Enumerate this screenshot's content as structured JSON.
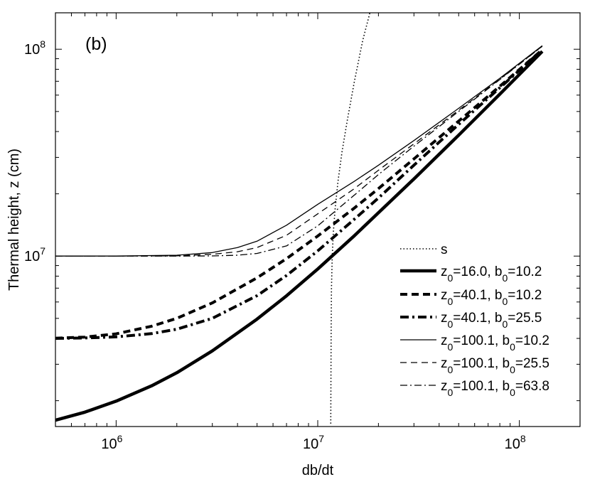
{
  "chart_data": {
    "type": "line",
    "panel_label": "(b)",
    "xlabel": "db/dt",
    "ylabel": "Thermal height, z (cm)",
    "xscale": "log",
    "yscale": "log",
    "xlim": [
      500000,
      200000000
    ],
    "ylim": [
      1500000,
      150000000
    ],
    "x_ticks": [
      {
        "value": 1000000,
        "base": "10",
        "exp": "6"
      },
      {
        "value": 10000000,
        "base": "10",
        "exp": "7"
      },
      {
        "value": 100000000,
        "base": "10",
        "exp": "8"
      }
    ],
    "y_ticks": [
      {
        "value": 10000000,
        "base": "10",
        "exp": "7"
      },
      {
        "value": 100000000,
        "base": "10",
        "exp": "8"
      }
    ],
    "legend_position": "lower-right",
    "series": [
      {
        "name": "s",
        "label": {
          "text": "s"
        },
        "style": "dotted",
        "width": 1.6,
        "x": [
          11600000,
          11650000,
          11700000,
          11800000,
          11950000,
          12200000,
          12600000,
          13200000,
          14000000,
          15200000,
          16700000,
          18300000
        ],
        "y": [
          1550000,
          4000000,
          7000000,
          10000000,
          13000000,
          17000000,
          23000000,
          32000000,
          45000000,
          70000000,
          110000000,
          155000000
        ]
      },
      {
        "name": "z0=16.0, b0=10.2",
        "label": {
          "p1": "z",
          "s1": "0",
          "p2": "=16.0, b",
          "s2": "0",
          "p3": "=10.2"
        },
        "style": "solid",
        "width": 4.5,
        "x": [
          500000,
          700000,
          1000000,
          1500000,
          2000000,
          3000000,
          5000000,
          7000000,
          10000000,
          15000000,
          20000000,
          30000000,
          50000000,
          80000000,
          130000000
        ],
        "y": [
          1610000,
          1760000,
          1990000,
          2360000,
          2730000,
          3480000,
          4960000,
          6430000,
          8660000,
          12400000,
          16200000,
          23600000,
          38400000,
          60600000,
          97600000
        ]
      },
      {
        "name": "z0=40.1, b0=10.2",
        "label": {
          "p1": "z",
          "s1": "0",
          "p2": "=40.1, b",
          "s2": "0",
          "p3": "=10.2"
        },
        "style": "dashed",
        "width": 4,
        "x": [
          500000,
          700000,
          1000000,
          1500000,
          2000000,
          3000000,
          5000000,
          7000000,
          10000000,
          15000000,
          20000000,
          30000000,
          50000000,
          80000000,
          130000000
        ],
        "y": [
          4010000,
          4060000,
          4210000,
          4580000,
          5000000,
          5940000,
          7850000,
          9720000,
          12500000,
          16900000,
          21200000,
          29500000,
          44900000,
          66200000,
          99500000
        ]
      },
      {
        "name": "z0=40.1, b0=25.5",
        "label": {
          "p1": "z",
          "s1": "0",
          "p2": "=40.1, b",
          "s2": "0",
          "p3": "=25.5"
        },
        "style": "dashdot",
        "width": 4,
        "x": [
          500000,
          700000,
          1000000,
          1500000,
          2000000,
          3000000,
          5000000,
          7000000,
          10000000,
          15000000,
          20000000,
          30000000,
          50000000,
          80000000,
          130000000
        ],
        "y": [
          4000000,
          4020000,
          4070000,
          4220000,
          4430000,
          5000000,
          6440000,
          8060000,
          10600000,
          14900000,
          19100000,
          27500000,
          43300000,
          65100000,
          99300000
        ]
      },
      {
        "name": "z0=100.1, b0=10.2",
        "label": {
          "p1": "z",
          "s1": "0",
          "p2": "=100.1, b",
          "s2": "0",
          "p3": "=10.2"
        },
        "style": "solid",
        "width": 1.3,
        "x": [
          500000,
          1000000,
          2000000,
          3000000,
          4000000,
          5000000,
          7000000,
          10000000,
          15000000,
          20000000,
          30000000,
          50000000,
          80000000,
          130000000
        ],
        "y": [
          10000000,
          10000000,
          10100000,
          10400000,
          11000000,
          11800000,
          14100000,
          17800000,
          22800000,
          27500000,
          36200000,
          51800000,
          72400000,
          104000000
        ]
      },
      {
        "name": "z0=100.1, b0=25.5",
        "label": {
          "p1": "z",
          "s1": "0",
          "p2": "=100.1, b",
          "s2": "0",
          "p3": "=25.5"
        },
        "style": "dashed",
        "width": 1.3,
        "x": [
          500000,
          1000000,
          2000000,
          3000000,
          4000000,
          5000000,
          7000000,
          10000000,
          15000000,
          20000000,
          30000000,
          50000000,
          80000000,
          130000000
        ],
        "y": [
          10000000,
          10000000,
          10030000,
          10200000,
          10500000,
          11000000,
          12600000,
          16000000,
          21000000,
          26000000,
          34900000,
          50700000,
          71700000,
          103500000
        ]
      },
      {
        "name": "z0=100.1, b0=63.8",
        "label": {
          "p1": "z",
          "s1": "0",
          "p2": "=100.1, b",
          "s2": "0",
          "p3": "=63.8"
        },
        "style": "dashdot",
        "width": 1.3,
        "x": [
          500000,
          1000000,
          2000000,
          3000000,
          4000000,
          5000000,
          7000000,
          10000000,
          15000000,
          20000000,
          30000000,
          50000000,
          80000000,
          130000000
        ],
        "y": [
          10000000,
          10000000,
          10000000,
          10020000,
          10100000,
          10300000,
          11200000,
          14000000,
          19500000,
          24800000,
          34000000,
          50000000,
          71300000,
          103300000
        ]
      }
    ]
  }
}
